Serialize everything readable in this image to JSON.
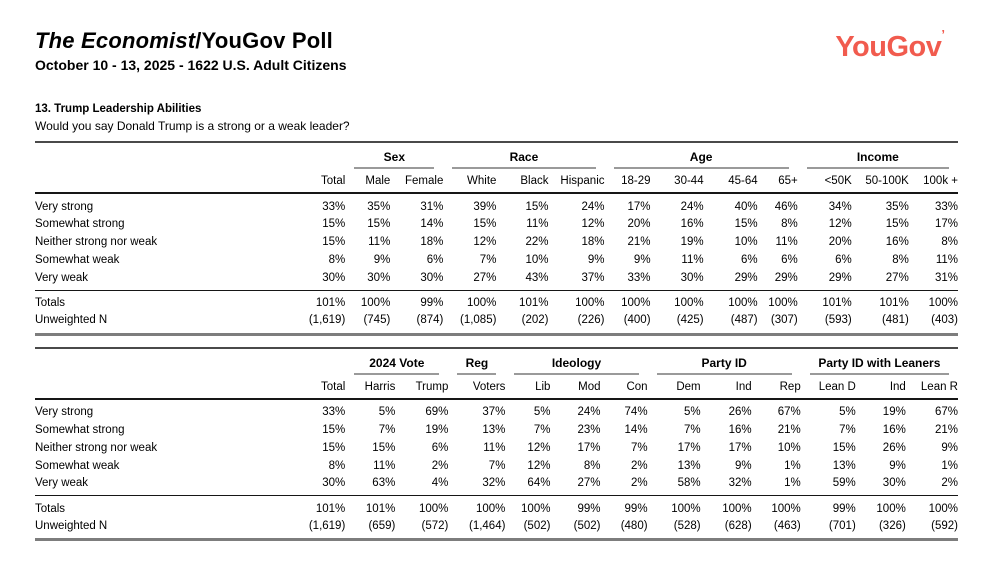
{
  "header": {
    "title_italic": "The Economist",
    "title_rest": "/YouGov Poll",
    "subtitle": "October 10 - 13, 2025 - 1622 U.S. Adult Citizens",
    "logo_text": "YouGov",
    "logo_mark": "’",
    "brand_color": "#F15B4E"
  },
  "question": {
    "number_title": "13. Trump Leadership Abilities",
    "text": "Would you say Donald Trump is a strong or a weak leader?"
  },
  "labels": {
    "totals": "Totals",
    "unweighted": "Unweighted N"
  },
  "table1": {
    "groups": [
      {
        "label": "Sex",
        "span": 2
      },
      {
        "label": "Race",
        "span": 3
      },
      {
        "label": "Age",
        "span": 4
      },
      {
        "label": "Income",
        "span": 3
      }
    ],
    "columns": [
      "Total",
      "Male",
      "Female",
      "White",
      "Black",
      "Hispanic",
      "18-29",
      "30-44",
      "45-64",
      "65+",
      "<50K",
      "50-100K",
      "100k +"
    ],
    "rows": [
      {
        "label": "Very strong",
        "values": [
          "33%",
          "35%",
          "31%",
          "39%",
          "15%",
          "24%",
          "17%",
          "24%",
          "40%",
          "46%",
          "34%",
          "35%",
          "33%"
        ]
      },
      {
        "label": "Somewhat strong",
        "values": [
          "15%",
          "15%",
          "14%",
          "15%",
          "11%",
          "12%",
          "20%",
          "16%",
          "15%",
          "8%",
          "12%",
          "15%",
          "17%"
        ]
      },
      {
        "label": "Neither strong nor weak",
        "values": [
          "15%",
          "11%",
          "18%",
          "12%",
          "22%",
          "18%",
          "21%",
          "19%",
          "10%",
          "11%",
          "20%",
          "16%",
          "8%"
        ]
      },
      {
        "label": "Somewhat weak",
        "values": [
          "8%",
          "9%",
          "6%",
          "7%",
          "10%",
          "9%",
          "9%",
          "11%",
          "6%",
          "6%",
          "6%",
          "8%",
          "11%"
        ]
      },
      {
        "label": "Very weak",
        "values": [
          "30%",
          "30%",
          "30%",
          "27%",
          "43%",
          "37%",
          "33%",
          "30%",
          "29%",
          "29%",
          "29%",
          "27%",
          "31%"
        ]
      }
    ],
    "totals": [
      "101%",
      "100%",
      "99%",
      "100%",
      "101%",
      "100%",
      "100%",
      "100%",
      "100%",
      "100%",
      "101%",
      "101%",
      "100%"
    ],
    "unweighted": [
      "(1,619)",
      "(745)",
      "(874)",
      "(1,085)",
      "(202)",
      "(226)",
      "(400)",
      "(425)",
      "(487)",
      "(307)",
      "(593)",
      "(481)",
      "(403)"
    ]
  },
  "table2": {
    "groups": [
      {
        "label": "2024 Vote",
        "span": 2
      },
      {
        "label": "Reg",
        "span": 1
      },
      {
        "label": "Ideology",
        "span": 3
      },
      {
        "label": "Party ID",
        "span": 3
      },
      {
        "label": "Party ID with Leaners",
        "span": 3
      }
    ],
    "columns": [
      "Total",
      "Harris",
      "Trump",
      "Voters",
      "Lib",
      "Mod",
      "Con",
      "Dem",
      "Ind",
      "Rep",
      "Lean D",
      "Ind",
      "Lean R"
    ],
    "rows": [
      {
        "label": "Very strong",
        "values": [
          "33%",
          "5%",
          "69%",
          "37%",
          "5%",
          "24%",
          "74%",
          "5%",
          "26%",
          "67%",
          "5%",
          "19%",
          "67%"
        ]
      },
      {
        "label": "Somewhat strong",
        "values": [
          "15%",
          "7%",
          "19%",
          "13%",
          "7%",
          "23%",
          "14%",
          "7%",
          "16%",
          "21%",
          "7%",
          "16%",
          "21%"
        ]
      },
      {
        "label": "Neither strong nor weak",
        "values": [
          "15%",
          "15%",
          "6%",
          "11%",
          "12%",
          "17%",
          "7%",
          "17%",
          "17%",
          "10%",
          "15%",
          "26%",
          "9%"
        ]
      },
      {
        "label": "Somewhat weak",
        "values": [
          "8%",
          "11%",
          "2%",
          "7%",
          "12%",
          "8%",
          "2%",
          "13%",
          "9%",
          "1%",
          "13%",
          "9%",
          "1%"
        ]
      },
      {
        "label": "Very weak",
        "values": [
          "30%",
          "63%",
          "4%",
          "32%",
          "64%",
          "27%",
          "2%",
          "58%",
          "32%",
          "1%",
          "59%",
          "30%",
          "2%"
        ]
      }
    ],
    "totals": [
      "101%",
      "101%",
      "100%",
      "100%",
      "100%",
      "99%",
      "99%",
      "100%",
      "100%",
      "100%",
      "99%",
      "100%",
      "100%"
    ],
    "unweighted": [
      "(1,619)",
      "(659)",
      "(572)",
      "(1,464)",
      "(502)",
      "(502)",
      "(480)",
      "(528)",
      "(628)",
      "(463)",
      "(701)",
      "(326)",
      "(592)"
    ]
  }
}
